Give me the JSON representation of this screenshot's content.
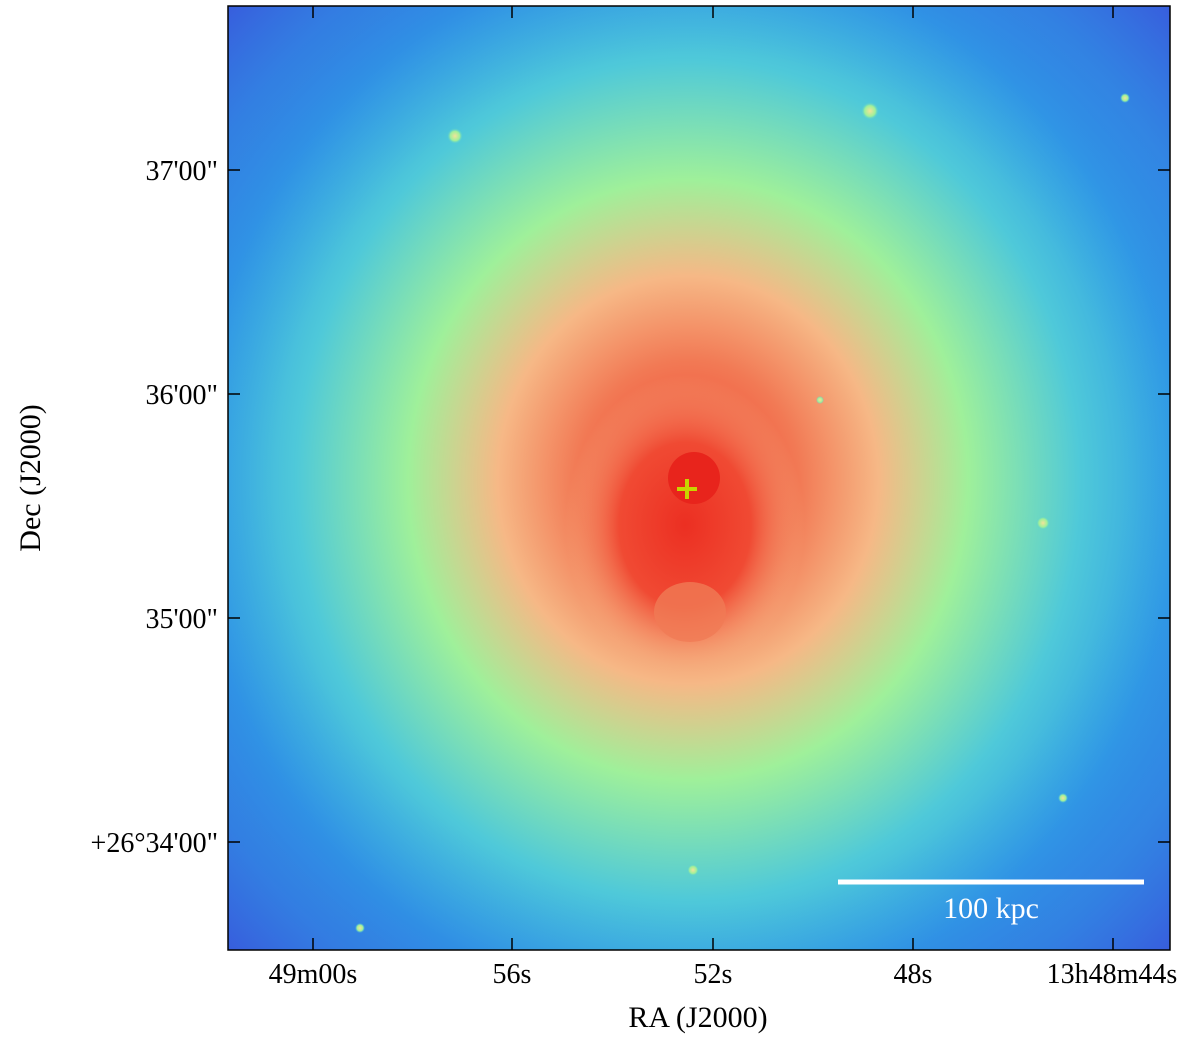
{
  "image": {
    "subject": "X-ray surface brightness map of galaxy cluster",
    "colormap": [
      "#3a3fe0",
      "#2f9de6",
      "#4fc9d9",
      "#9ff09a",
      "#f6b886",
      "#ef3a2a"
    ]
  },
  "axes": {
    "xlabel": "RA (J2000)",
    "ylabel": "Dec (J2000)",
    "x_ticks": [
      {
        "label": "49m00s"
      },
      {
        "label": "56s"
      },
      {
        "label": "52s"
      },
      {
        "label": "48s"
      },
      {
        "label": "13h48m44s"
      }
    ],
    "y_ticks": [
      {
        "label": "37'00\""
      },
      {
        "label": "36'00\""
      },
      {
        "label": "35'00\""
      },
      {
        "label": "+26°34'00\""
      }
    ]
  },
  "marker": {
    "symbol": "+",
    "color": "#c8d400"
  },
  "scalebar": {
    "label": "100 kpc",
    "color": "#ffffff"
  }
}
